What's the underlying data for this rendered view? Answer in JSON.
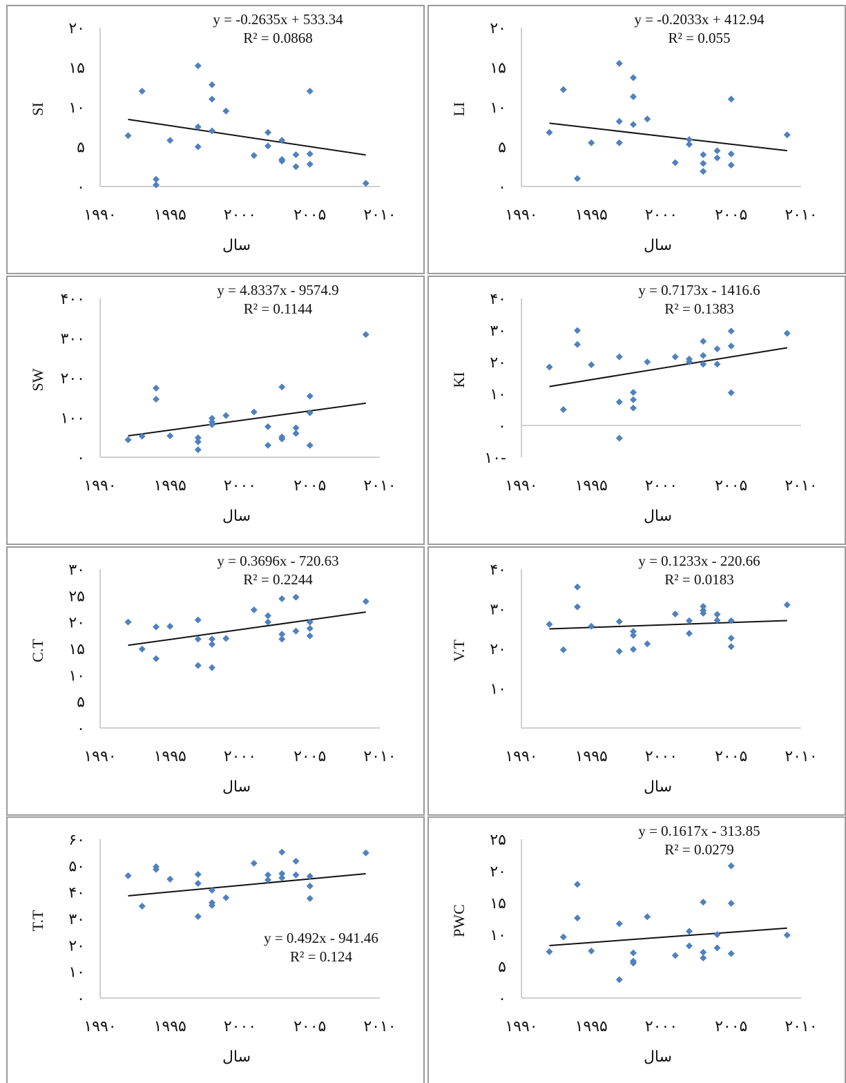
{
  "chart_data": [
    {
      "type": "scatter",
      "ylabel": "SI",
      "xlabel": "سال",
      "color": "#4f81bd",
      "x": [
        1992,
        1993,
        1994,
        1994,
        1995,
        1997,
        1997,
        1997,
        1998,
        1998,
        1998,
        1999,
        2001,
        2002,
        2002,
        2003,
        2003,
        2003,
        2004,
        2004,
        2005,
        2005,
        2005,
        2009
      ],
      "values": [
        6.4,
        12,
        0.9,
        0.2,
        5.8,
        15.2,
        7.5,
        5,
        12.8,
        11,
        7,
        9.5,
        3.9,
        6.8,
        5.1,
        5.8,
        3.4,
        3.2,
        4,
        2.5,
        12,
        4.1,
        2.8,
        0.4
      ],
      "xlim": [
        1990,
        2010
      ],
      "xticks": [
        {
          "value": 1990,
          "label": "۱۹۹۰"
        },
        {
          "value": 1995,
          "label": "۱۹۹۵"
        },
        {
          "value": 2000,
          "label": "۲۰۰۰"
        },
        {
          "value": 2005,
          "label": "۲۰۰۵"
        },
        {
          "value": 2010,
          "label": "۲۰۱۰"
        }
      ],
      "ylim": [
        0,
        20
      ],
      "yticks": [
        {
          "value": 0,
          "label": "۰"
        },
        {
          "value": 5,
          "label": "۵"
        },
        {
          "value": 10,
          "label": "۱۰"
        },
        {
          "value": 15,
          "label": "۱۵"
        },
        {
          "value": 20,
          "label": "۲۰"
        }
      ],
      "trendline": {
        "equation": "y = -0.2635x + 533.34",
        "r_squared": "R² = 0.0868",
        "slope": -0.2635,
        "intercept": 533.34
      }
    },
    {
      "type": "scatter",
      "ylabel": "LI",
      "xlabel": "سال",
      "color": "#4f81bd",
      "x": [
        1992,
        1993,
        1994,
        1995,
        1997,
        1997,
        1997,
        1998,
        1998,
        1998,
        1999,
        2001,
        2002,
        2002,
        2003,
        2003,
        2003,
        2004,
        2004,
        2005,
        2005,
        2005,
        2009
      ],
      "values": [
        6.8,
        12.2,
        1,
        5.5,
        15.5,
        8.2,
        5.5,
        13.7,
        11.3,
        7.8,
        8.5,
        3,
        5.9,
        5.3,
        4,
        2.9,
        1.9,
        4.5,
        3.6,
        11,
        4.1,
        2.7,
        6.5
      ],
      "xlim": [
        1990,
        2010
      ],
      "xticks": [
        {
          "value": 1990,
          "label": "۱۹۹۰"
        },
        {
          "value": 1995,
          "label": "۱۹۹۵"
        },
        {
          "value": 2000,
          "label": "۲۰۰۰"
        },
        {
          "value": 2005,
          "label": "۲۰۰۵"
        },
        {
          "value": 2010,
          "label": "۲۰۱۰"
        }
      ],
      "ylim": [
        0,
        20
      ],
      "yticks": [
        {
          "value": 0,
          "label": "۰"
        },
        {
          "value": 5,
          "label": "۵"
        },
        {
          "value": 10,
          "label": "۱۰"
        },
        {
          "value": 15,
          "label": "۱۵"
        },
        {
          "value": 20,
          "label": "۲۰"
        }
      ],
      "trendline": {
        "equation": "y = -0.2033x + 412.94",
        "r_squared": "R² = 0.055",
        "slope": -0.2033,
        "intercept": 412.94
      }
    },
    {
      "type": "scatter",
      "ylabel": "SW",
      "xlabel": "سال",
      "color": "#4f81bd",
      "x": [
        1992,
        1993,
        1994,
        1994,
        1995,
        1997,
        1997,
        1997,
        1998,
        1998,
        1998,
        1999,
        2001,
        2002,
        2002,
        2003,
        2003,
        2003,
        2004,
        2004,
        2005,
        2005,
        2005,
        2009
      ],
      "values": [
        44,
        53,
        174,
        146,
        54,
        49,
        39,
        19,
        98,
        89,
        82,
        105,
        114,
        77,
        30,
        177,
        51,
        46,
        74,
        60,
        154,
        112,
        30,
        309
      ],
      "xlim": [
        1990,
        2010
      ],
      "xticks": [
        {
          "value": 1990,
          "label": "۱۹۹۰"
        },
        {
          "value": 1995,
          "label": "۱۹۹۵"
        },
        {
          "value": 2000,
          "label": "۲۰۰۰"
        },
        {
          "value": 2005,
          "label": "۲۰۰۵"
        },
        {
          "value": 2010,
          "label": "۲۰۱۰"
        }
      ],
      "ylim": [
        0,
        400
      ],
      "yticks": [
        {
          "value": 0,
          "label": "۰"
        },
        {
          "value": 100,
          "label": "۱۰۰"
        },
        {
          "value": 200,
          "label": "۲۰۰"
        },
        {
          "value": 300,
          "label": "۳۰۰"
        },
        {
          "value": 400,
          "label": "۴۰۰"
        }
      ],
      "trendline": {
        "equation": "y = 4.8337x - 9574.9",
        "r_squared": "R² = 0.1144",
        "slope": 4.8337,
        "intercept": -9574.9
      }
    },
    {
      "type": "scatter",
      "ylabel": "KI",
      "xlabel": "سال",
      "color": "#4f81bd",
      "x": [
        1992,
        1993,
        1994,
        1994,
        1995,
        1997,
        1997,
        1997,
        1998,
        1998,
        1998,
        1999,
        2001,
        2002,
        2002,
        2003,
        2003,
        2003,
        2004,
        2004,
        2005,
        2005,
        2005,
        2009
      ],
      "values": [
        18.4,
        5,
        29.9,
        25.5,
        19.1,
        21.6,
        7.4,
        -4,
        10.4,
        8.1,
        5.5,
        20,
        21.6,
        20.9,
        20,
        26.5,
        22,
        19.3,
        24.1,
        19.3,
        29.7,
        25,
        10.3,
        29
      ],
      "xlim": [
        1990,
        2010
      ],
      "xticks": [
        {
          "value": 1990,
          "label": "۱۹۹۰"
        },
        {
          "value": 1995,
          "label": "۱۹۹۵"
        },
        {
          "value": 2000,
          "label": "۲۰۰۰"
        },
        {
          "value": 2005,
          "label": "۲۰۰۵"
        },
        {
          "value": 2010,
          "label": "۲۰۱۰"
        }
      ],
      "ylim": [
        -10,
        40
      ],
      "yticks": [
        {
          "value": -10,
          "label": "۱۰-"
        },
        {
          "value": 0,
          "label": "۰"
        },
        {
          "value": 10,
          "label": "۱۰"
        },
        {
          "value": 20,
          "label": "۲۰"
        },
        {
          "value": 30,
          "label": "۳۰"
        },
        {
          "value": 40,
          "label": "۴۰"
        }
      ],
      "trendline": {
        "equation": "y = 0.7173x - 1416.6",
        "r_squared": "R² = 0.1383",
        "slope": 0.7173,
        "intercept": -1416.6
      }
    },
    {
      "type": "scatter",
      "ylabel": "C.T",
      "xlabel": "سال",
      "color": "#4f81bd",
      "x": [
        1992,
        1993,
        1994,
        1994,
        1995,
        1997,
        1997,
        1997,
        1998,
        1998,
        1998,
        1999,
        2001,
        2002,
        2002,
        2003,
        2003,
        2003,
        2004,
        2004,
        2005,
        2005,
        2005,
        2009
      ],
      "values": [
        20,
        14.9,
        13.1,
        19.1,
        19.2,
        20.4,
        16.8,
        11.8,
        16.8,
        15.8,
        11.4,
        16.9,
        22.3,
        21.2,
        20,
        24.4,
        17.7,
        16.8,
        24.7,
        18.3,
        20,
        18.8,
        17.4,
        23.9
      ],
      "xlim": [
        1990,
        2010
      ],
      "xticks": [
        {
          "value": 1990,
          "label": "۱۹۹۰"
        },
        {
          "value": 1995,
          "label": "۱۹۹۵"
        },
        {
          "value": 2000,
          "label": "۲۰۰۰"
        },
        {
          "value": 2005,
          "label": "۲۰۰۵"
        },
        {
          "value": 2010,
          "label": "۲۰۱۰"
        }
      ],
      "ylim": [
        0,
        30
      ],
      "yticks": [
        {
          "value": 0,
          "label": "۰"
        },
        {
          "value": 5,
          "label": "۵"
        },
        {
          "value": 10,
          "label": "۱۰"
        },
        {
          "value": 15,
          "label": "۱۵"
        },
        {
          "value": 20,
          "label": "۲۰"
        },
        {
          "value": 25,
          "label": "۲۵"
        },
        {
          "value": 30,
          "label": "۳۰"
        }
      ],
      "trendline": {
        "equation": "y = 0.3696x - 720.63",
        "r_squared": "R² = 0.2244",
        "slope": 0.3696,
        "intercept": -720.63
      }
    },
    {
      "type": "scatter",
      "ylabel": "V.T",
      "xlabel": "سال",
      "color": "#4f81bd",
      "x": [
        1992,
        1993,
        1994,
        1994,
        1995,
        1997,
        1997,
        1998,
        1998,
        1998,
        1999,
        2001,
        2002,
        2002,
        2003,
        2003,
        2003,
        2004,
        2004,
        2005,
        2005,
        2005,
        2009
      ],
      "values": [
        26.1,
        19.7,
        35.5,
        30.5,
        25.6,
        26.8,
        19.3,
        24.3,
        23.3,
        19.8,
        21.2,
        28.7,
        27,
        23.8,
        30.6,
        29.6,
        28.9,
        28.6,
        27.1,
        27,
        22.6,
        20.5,
        31
      ],
      "xlim": [
        1990,
        2010
      ],
      "xticks": [
        {
          "value": 1990,
          "label": "۱۹۹۰"
        },
        {
          "value": 1995,
          "label": "۱۹۹۵"
        },
        {
          "value": 2000,
          "label": "۲۰۰۰"
        },
        {
          "value": 2005,
          "label": "۲۰۰۵"
        },
        {
          "value": 2010,
          "label": "۲۰۱۰"
        }
      ],
      "ylim": [
        0,
        40
      ],
      "yticks": [
        {
          "value": 10,
          "label": "۱۰"
        },
        {
          "value": 20,
          "label": "۲۰"
        },
        {
          "value": 30,
          "label": "۳۰"
        },
        {
          "value": 40,
          "label": "۴۰"
        }
      ],
      "trendline": {
        "equation": "y = 0.1233x - 220.66",
        "r_squared": "R² = 0.0183",
        "slope": 0.1233,
        "intercept": -220.66
      }
    },
    {
      "type": "scatter",
      "ylabel": "T.T",
      "xlabel": "سال",
      "color": "#4f81bd",
      "x": [
        1992,
        1993,
        1994,
        1994,
        1995,
        1997,
        1997,
        1997,
        1998,
        1998,
        1998,
        1999,
        2001,
        2002,
        2002,
        2003,
        2003,
        2003,
        2004,
        2004,
        2005,
        2005,
        2005,
        2009
      ],
      "values": [
        46.2,
        34.7,
        49.6,
        48.6,
        44.9,
        46.7,
        43.3,
        30.8,
        40.7,
        36,
        35,
        37.9,
        50.9,
        46.5,
        44.6,
        55.1,
        47,
        45.4,
        51.7,
        46.5,
        46,
        42.3,
        37.6,
        54.8
      ],
      "xlim": [
        1990,
        2010
      ],
      "xticks": [
        {
          "value": 1990,
          "label": "۱۹۹۰"
        },
        {
          "value": 1995,
          "label": "۱۹۹۵"
        },
        {
          "value": 2000,
          "label": "۲۰۰۰"
        },
        {
          "value": 2005,
          "label": "۲۰۰۵"
        },
        {
          "value": 2010,
          "label": "۲۰۱۰"
        }
      ],
      "ylim": [
        0,
        60
      ],
      "yticks": [
        {
          "value": 0,
          "label": "۰"
        },
        {
          "value": 10,
          "label": "۱۰"
        },
        {
          "value": 20,
          "label": "۲۰"
        },
        {
          "value": 30,
          "label": "۳۰"
        },
        {
          "value": 40,
          "label": "۴۰"
        },
        {
          "value": 50,
          "label": "۵۰"
        },
        {
          "value": 60,
          "label": "۶۰"
        }
      ],
      "trendline": {
        "equation": "y = 0.492x - 941.46",
        "r_squared": "R² = 0.124",
        "slope": 0.492,
        "intercept": -941.46
      }
    },
    {
      "type": "scatter",
      "ylabel": "PWC",
      "xlabel": "سال",
      "color": "#4f81bd",
      "x": [
        1992,
        1993,
        1994,
        1994,
        1995,
        1997,
        1997,
        1998,
        1998,
        1998,
        1999,
        2001,
        2002,
        2002,
        2003,
        2003,
        2003,
        2004,
        2004,
        2005,
        2005,
        2005,
        2009
      ],
      "values": [
        7.3,
        9.6,
        17.9,
        12.6,
        7.4,
        11.7,
        2.9,
        7.1,
        5.8,
        5.5,
        12.8,
        6.7,
        10.5,
        8.2,
        15.1,
        7.2,
        6.3,
        10,
        7.9,
        20.8,
        14.9,
        7,
        9.9
      ],
      "xlim": [
        1990,
        2010
      ],
      "xticks": [
        {
          "value": 1990,
          "label": "۱۹۹۰"
        },
        {
          "value": 1995,
          "label": "۱۹۹۵"
        },
        {
          "value": 2000,
          "label": "۲۰۰۰"
        },
        {
          "value": 2005,
          "label": "۲۰۰۵"
        },
        {
          "value": 2010,
          "label": "۲۰۱۰"
        }
      ],
      "ylim": [
        0,
        25
      ],
      "yticks": [
        {
          "value": 0,
          "label": "۰"
        },
        {
          "value": 5,
          "label": "۵"
        },
        {
          "value": 10,
          "label": "۱۰"
        },
        {
          "value": 15,
          "label": "۱۵"
        },
        {
          "value": 20,
          "label": "۲۰"
        },
        {
          "value": 25,
          "label": "۲۵"
        }
      ],
      "trendline": {
        "equation": "y = 0.1617x - 313.85",
        "r_squared": "R² = 0.0279",
        "slope": 0.1617,
        "intercept": -313.85
      }
    }
  ]
}
